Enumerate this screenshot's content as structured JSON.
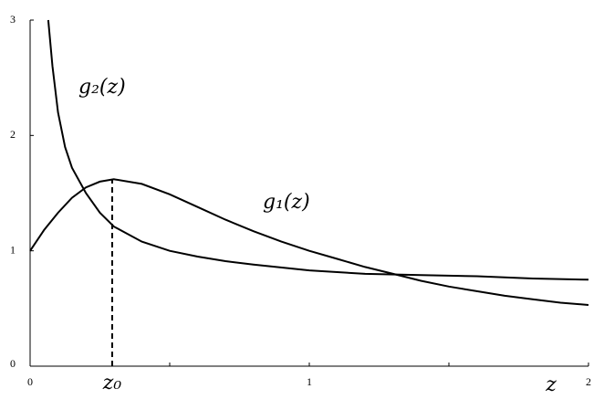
{
  "chart_data": {
    "type": "line",
    "xlim": [
      0,
      2
    ],
    "ylim": [
      0,
      3
    ],
    "xticks": [
      0,
      1,
      2
    ],
    "yticks": [
      0,
      1,
      2,
      3
    ],
    "xminorticks": [
      0.5,
      1.5
    ],
    "xlabel": "z",
    "series": [
      {
        "name": "g₁(z)",
        "color": "#000000",
        "x": [
          0,
          0.05,
          0.1,
          0.15,
          0.2,
          0.25,
          0.3,
          0.4,
          0.5,
          0.6,
          0.7,
          0.8,
          0.9,
          1.0,
          1.1,
          1.2,
          1.3,
          1.4,
          1.5,
          1.6,
          1.7,
          1.8,
          1.9,
          2.0
        ],
        "values": [
          1.0,
          1.18,
          1.33,
          1.46,
          1.55,
          1.6,
          1.62,
          1.58,
          1.49,
          1.38,
          1.27,
          1.17,
          1.08,
          1.0,
          0.93,
          0.86,
          0.8,
          0.74,
          0.69,
          0.65,
          0.61,
          0.58,
          0.55,
          0.53
        ]
      },
      {
        "name": "g₂(z)",
        "color": "#000000",
        "x": [
          0.065,
          0.08,
          0.1,
          0.125,
          0.15,
          0.2,
          0.25,
          0.3,
          0.4,
          0.5,
          0.6,
          0.7,
          0.8,
          1.0,
          1.2,
          1.4,
          1.6,
          1.8,
          2.0
        ],
        "values": [
          3.0,
          2.6,
          2.2,
          1.9,
          1.72,
          1.5,
          1.33,
          1.21,
          1.08,
          1.0,
          0.95,
          0.91,
          0.88,
          0.83,
          0.8,
          0.79,
          0.78,
          0.76,
          0.75
        ]
      }
    ],
    "marker": {
      "label": "z₀",
      "x": 0.294,
      "y": 1.62
    }
  }
}
